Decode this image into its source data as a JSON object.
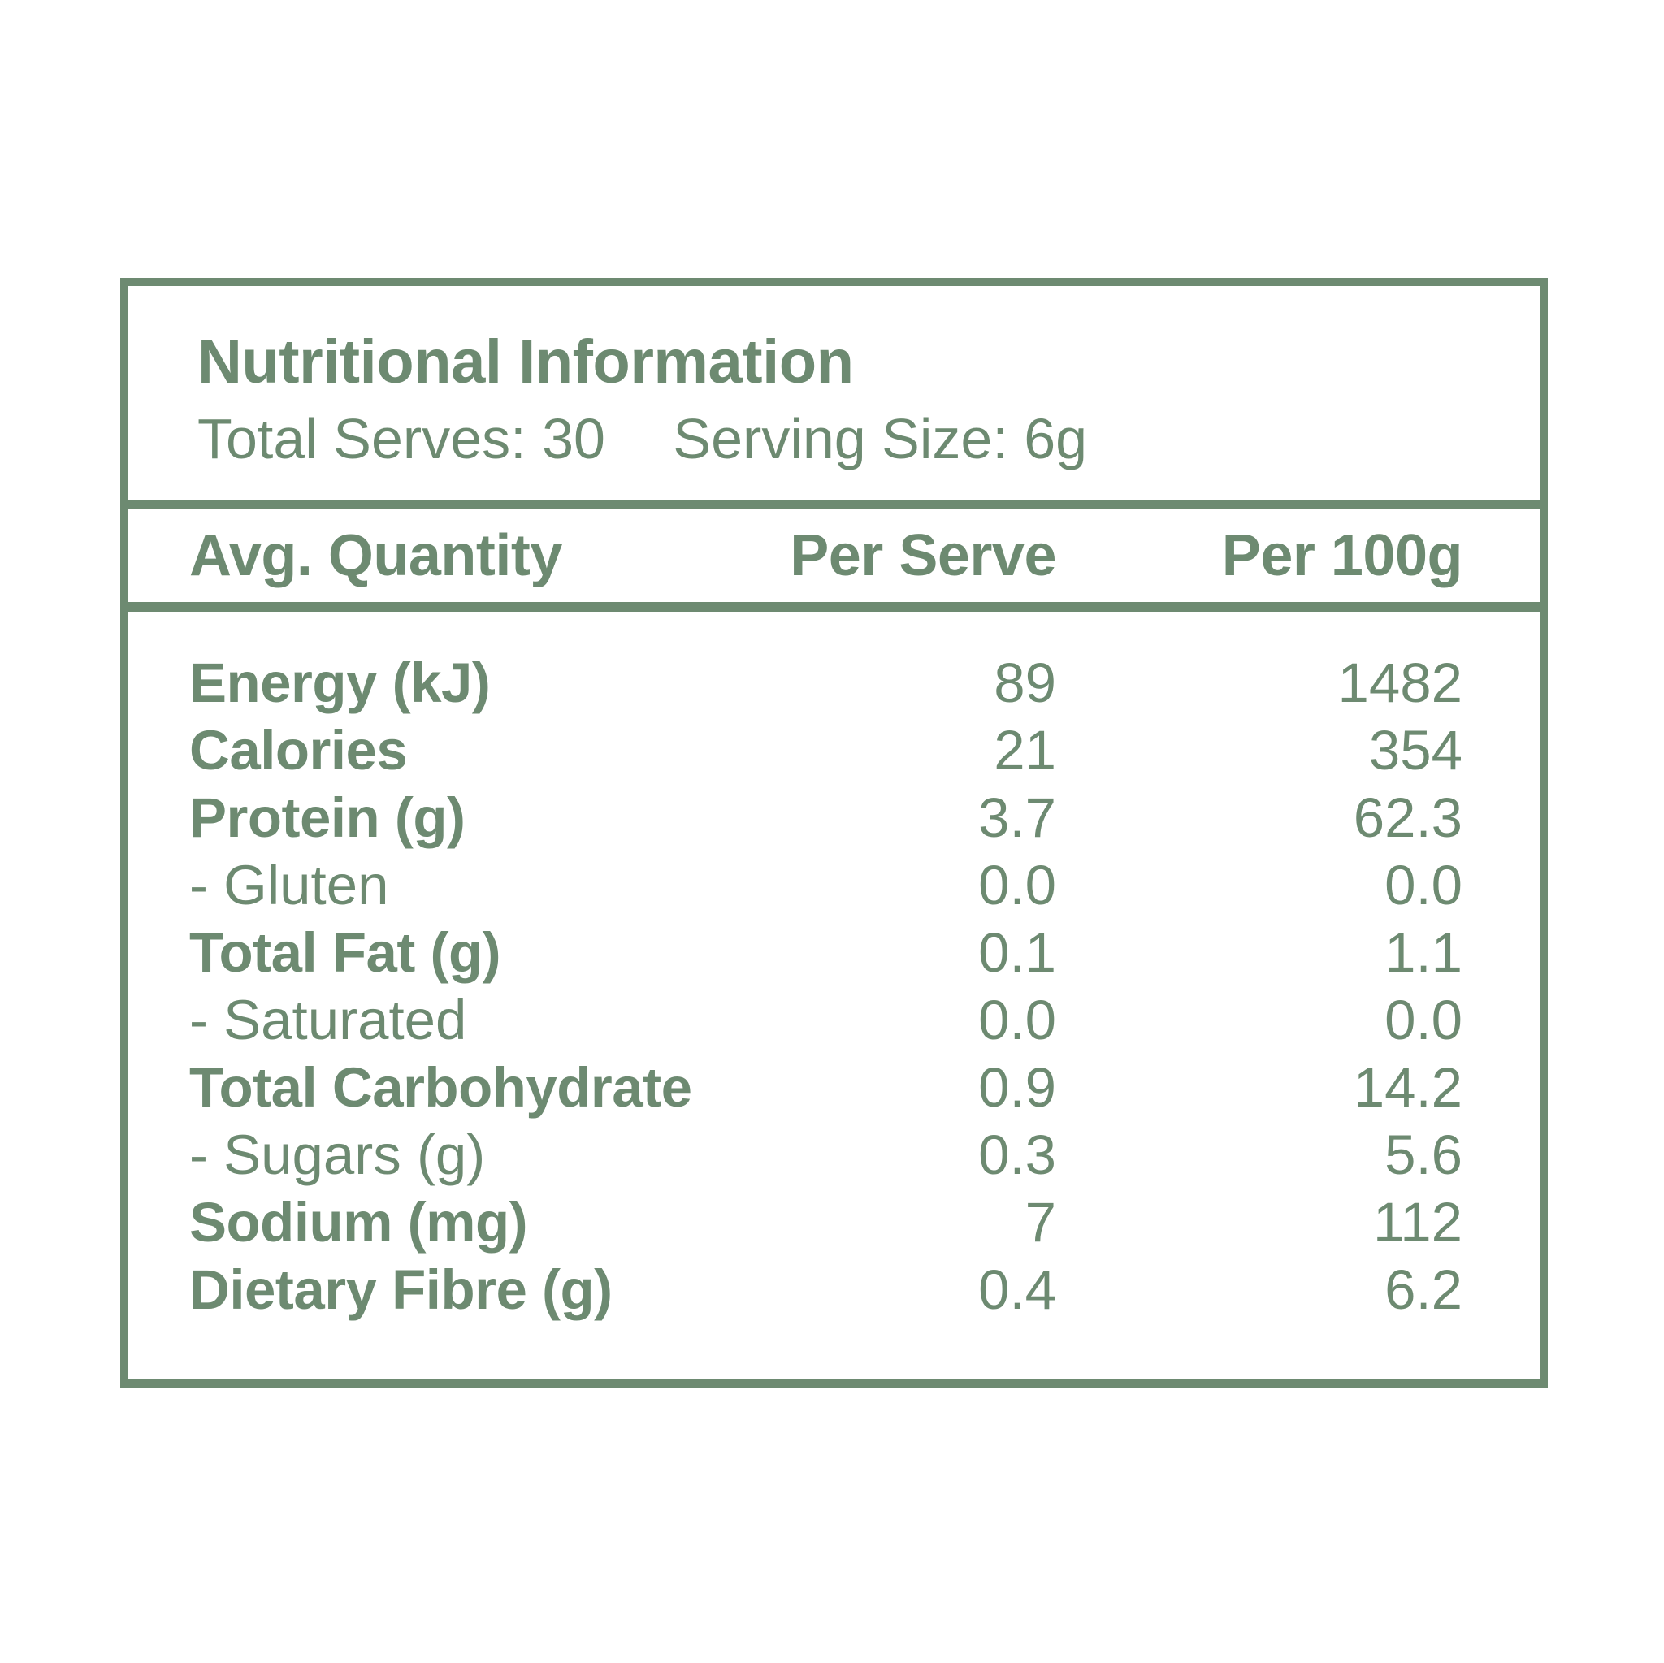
{
  "colors": {
    "green": "#6d8a71",
    "background": "#ffffff"
  },
  "label": {
    "title": "Nutritional Information",
    "total_serves": "Total Serves: 30",
    "serving_size": "Serving Size: 6g"
  },
  "table": {
    "headers": [
      "Avg. Quantity",
      "Per Serve",
      "Per 100g"
    ],
    "rows": [
      {
        "name": "Energy (kJ)",
        "per_serve": "89",
        "per_100g": "1482",
        "emphasis": true
      },
      {
        "name": "Calories",
        "per_serve": "21",
        "per_100g": "354",
        "emphasis": true
      },
      {
        "name": "Protein (g)",
        "per_serve": "3.7",
        "per_100g": "62.3",
        "emphasis": true
      },
      {
        "name": "- Gluten",
        "per_serve": "0.0",
        "per_100g": "0.0",
        "emphasis": false
      },
      {
        "name": "Total Fat (g)",
        "per_serve": "0.1",
        "per_100g": "1.1",
        "emphasis": true
      },
      {
        "name": "- Saturated",
        "per_serve": "0.0",
        "per_100g": "0.0",
        "emphasis": false
      },
      {
        "name": "Total Carbohydrate",
        "per_serve": "0.9",
        "per_100g": "14.2",
        "emphasis": true
      },
      {
        "name": "- Sugars (g)",
        "per_serve": "0.3",
        "per_100g": "5.6",
        "emphasis": false
      },
      {
        "name": "Sodium (mg)",
        "per_serve": "7",
        "per_100g": "112",
        "emphasis": true
      },
      {
        "name": "Dietary Fibre (g)",
        "per_serve": "0.4",
        "per_100g": "6.2",
        "emphasis": true
      }
    ]
  }
}
